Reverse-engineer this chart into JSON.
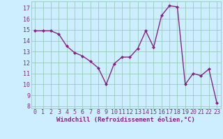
{
  "x": [
    0,
    1,
    2,
    3,
    4,
    5,
    6,
    7,
    8,
    9,
    10,
    11,
    12,
    13,
    14,
    15,
    16,
    17,
    18,
    19,
    20,
    21,
    22,
    23
  ],
  "y": [
    14.9,
    14.9,
    14.9,
    14.6,
    13.5,
    12.9,
    12.6,
    12.1,
    11.5,
    10.0,
    11.9,
    12.5,
    12.5,
    13.3,
    14.9,
    13.4,
    16.3,
    17.2,
    17.1,
    10.0,
    11.0,
    10.8,
    11.4,
    8.3
  ],
  "line_color": "#882288",
  "marker": "D",
  "marker_size": 2.0,
  "background_color": "#cceeff",
  "grid_color": "#99ccbb",
  "xlabel": "Windchill (Refroidissement éolien,°C)",
  "ylim": [
    7.8,
    17.6
  ],
  "xlim": [
    -0.5,
    23.5
  ],
  "yticks": [
    8,
    9,
    10,
    11,
    12,
    13,
    14,
    15,
    16,
    17
  ],
  "xticks": [
    0,
    1,
    2,
    3,
    4,
    5,
    6,
    7,
    8,
    9,
    10,
    11,
    12,
    13,
    14,
    15,
    16,
    17,
    18,
    19,
    20,
    21,
    22,
    23
  ],
  "tick_color": "#882288",
  "label_color": "#882288",
  "line_width": 1.0,
  "xlabel_fontsize": 6.5,
  "tick_fontsize": 6.0
}
